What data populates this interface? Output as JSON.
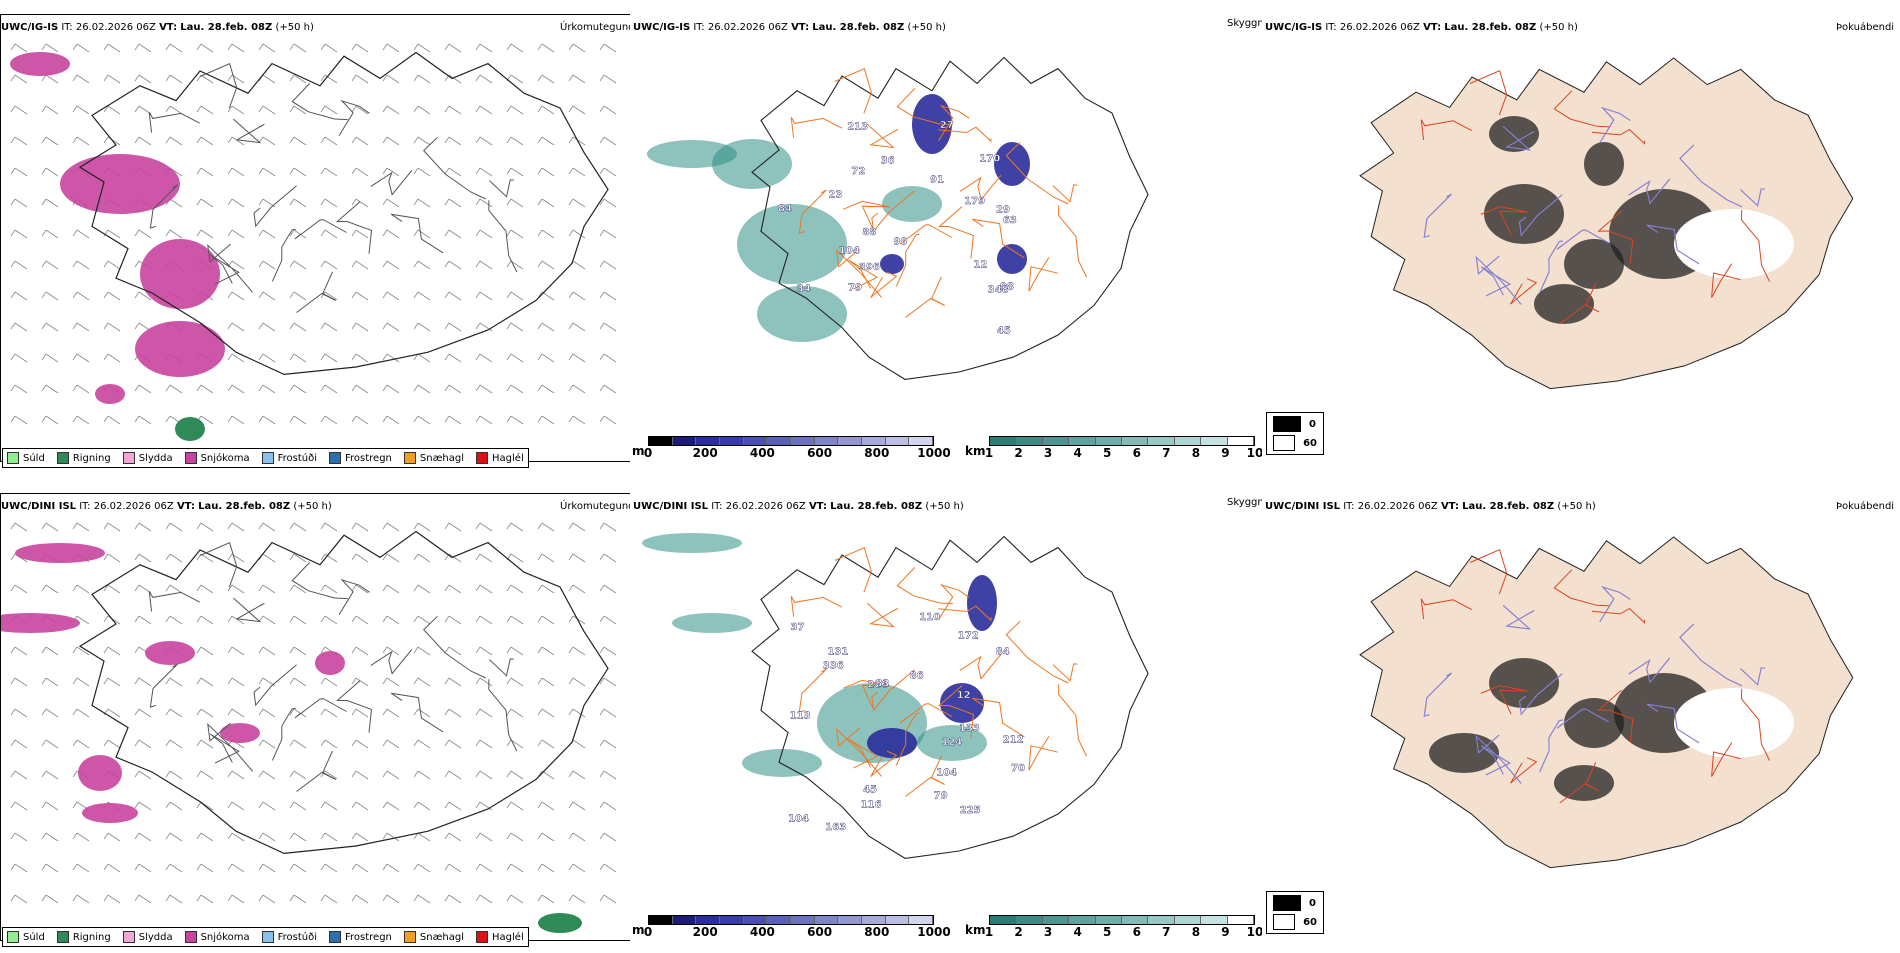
{
  "colors": {
    "sud": "#90ee90",
    "rigning": "#2e8b57",
    "slydda": "#f4a6d7",
    "snjokoma": "#c9449f",
    "frostudi": "#87c1f0",
    "frostregn": "#2c6fb0",
    "snaehagl": "#f0a020",
    "haglel": "#dd1111",
    "coast": "#222222",
    "road": "#ee7722",
    "land_beige": "#f3e0cf",
    "visibility_teal": "#2f8f86",
    "cloud_base_blue": "#2a2d9a",
    "wind_barb": "#888888"
  },
  "rows": [
    {
      "model": "UWC/IG-IS",
      "it_label": "IT:",
      "it": "26.02.2026 06Z",
      "vt_label": "VT:",
      "vt": "Lau. 28.feb. 08Z",
      "lead": "(+50 h)",
      "panels": {
        "precip": {
          "title": "Úrkomutegund"
        },
        "vis": {
          "title": "Skyggni",
          "labels": [
            "72",
            "29",
            "91",
            "63",
            "88",
            "98",
            "396",
            "27",
            "348",
            "170",
            "23",
            "12",
            "179",
            "79",
            "34",
            "90",
            "104",
            "84",
            "213",
            "36",
            "45"
          ]
        },
        "opac": {
          "title": "Þokuábendi"
        }
      }
    },
    {
      "model": "UWC/DINI ISL",
      "it_label": "IT:",
      "it": "26.02.2026 06Z",
      "vt_label": "VT:",
      "vt": "Lau. 28.feb. 08Z",
      "lead": "(+50 h)",
      "panels": {
        "precip": {
          "title": "Úrkomutegund"
        },
        "vis": {
          "title": "Skyggni",
          "labels": [
            "12",
            "104",
            "104",
            "225",
            "336",
            "116",
            "79",
            "286",
            "172",
            "133",
            "86",
            "110",
            "83",
            "113",
            "163",
            "212",
            "131",
            "84",
            "124",
            "45",
            "37",
            "70"
          ]
        },
        "opac": {
          "title": "Þokuábendi"
        }
      }
    }
  ],
  "precip_legend": [
    {
      "label": "Súld",
      "color": "#90ee90"
    },
    {
      "label": "Rigning",
      "color": "#2e8b57"
    },
    {
      "label": "Slydda",
      "color": "#f4a6d7"
    },
    {
      "label": "Snjókoma",
      "color": "#c9449f"
    },
    {
      "label": "Frostúði",
      "color": "#87c1f0"
    },
    {
      "label": "Frostregn",
      "color": "#2c6fb0"
    },
    {
      "label": "Snæhagl",
      "color": "#f0a020"
    },
    {
      "label": "Haglél",
      "color": "#dd1111"
    }
  ],
  "cloudbase_bar": {
    "unit": "m",
    "ticks": [
      "0",
      "200",
      "400",
      "600",
      "800",
      "1000"
    ],
    "colors": [
      "#000000",
      "#1b1b7a",
      "#2a2d9a",
      "#383ca8",
      "#4a4fb3",
      "#5a5fb9",
      "#6c71c0",
      "#7f84c8",
      "#9297d1",
      "#a7abd9",
      "#bcbee3",
      "#d3d5ee"
    ]
  },
  "vis_bar": {
    "unit": "km",
    "ticks": [
      "1",
      "2",
      "3",
      "4",
      "5",
      "6",
      "7",
      "8",
      "9",
      "10"
    ],
    "colors": [
      "#2a7d76",
      "#3b8a83",
      "#4b9690",
      "#5ea39d",
      "#70aea9",
      "#84bbb6",
      "#98c8c4",
      "#aed5d1",
      "#c4e2df",
      "#ffffff"
    ]
  },
  "opac_legend": [
    {
      "label": "0",
      "color": "#000000"
    },
    {
      "label": "60",
      "color": "#ffffff"
    }
  ]
}
